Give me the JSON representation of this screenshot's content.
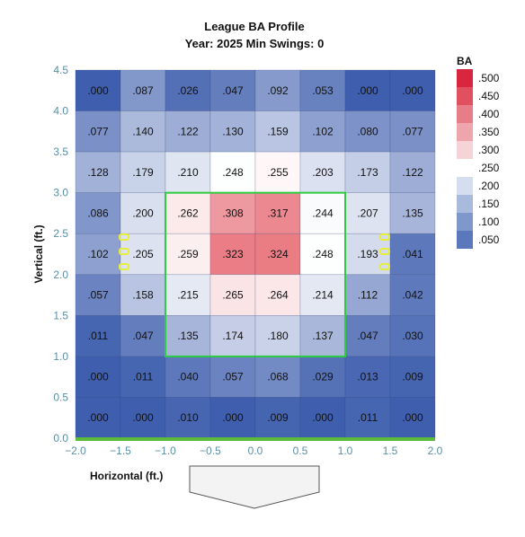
{
  "chart_data": {
    "type": "heatmap",
    "title": "League BA Profile",
    "subtitle": "Year: 2025 Min Swings: 0",
    "xlabel": "Horizontal (ft.)",
    "ylabel": "Vertical (ft.)",
    "xlim": [
      -2.0,
      2.0
    ],
    "ylim": [
      0.0,
      4.5
    ],
    "x_ticks": [
      "−2.0",
      "−1.5",
      "−1.0",
      "−0.5",
      "0.0",
      "0.5",
      "1.0",
      "1.5",
      "2.0"
    ],
    "y_ticks": [
      "0.0",
      "0.5",
      "1.0",
      "1.5",
      "2.0",
      "2.5",
      "3.0",
      "3.5",
      "4.0",
      "4.5"
    ],
    "x_edges": [
      -2.0,
      -1.5,
      -1.0,
      -0.5,
      0.0,
      0.5,
      1.0,
      1.5,
      2.0
    ],
    "y_edges": [
      4.5,
      4.0,
      3.5,
      3.0,
      2.5,
      2.0,
      1.5,
      1.0,
      0.5,
      0.0
    ],
    "values": [
      [
        ".000",
        ".087",
        ".026",
        ".047",
        ".092",
        ".053",
        ".000",
        ".000"
      ],
      [
        ".077",
        ".140",
        ".122",
        ".130",
        ".159",
        ".102",
        ".080",
        ".077"
      ],
      [
        ".128",
        ".179",
        ".210",
        ".248",
        ".255",
        ".203",
        ".173",
        ".122"
      ],
      [
        ".086",
        ".200",
        ".262",
        ".308",
        ".317",
        ".244",
        ".207",
        ".135"
      ],
      [
        ".102",
        ".205",
        ".259",
        ".323",
        ".324",
        ".248",
        ".193",
        ".041"
      ],
      [
        ".057",
        ".158",
        ".215",
        ".265",
        ".264",
        ".214",
        ".112",
        ".042"
      ],
      [
        ".011",
        ".047",
        ".135",
        ".174",
        ".180",
        ".137",
        ".047",
        ".030"
      ],
      [
        ".000",
        ".011",
        ".040",
        ".057",
        ".068",
        ".029",
        ".013",
        ".009"
      ],
      [
        ".000",
        ".000",
        ".010",
        ".000",
        ".009",
        ".000",
        ".011",
        ".000"
      ]
    ],
    "strike_zone": {
      "x": [
        -1.0,
        1.0
      ],
      "y": [
        1.0,
        3.0
      ]
    },
    "legend": {
      "title": "BA",
      "placement": "right",
      "labels": [
        ".500",
        ".450",
        ".400",
        ".350",
        ".300",
        ".250",
        ".200",
        ".150",
        ".100",
        ".050"
      ],
      "colors": [
        "#d7263d",
        "#e0505f",
        "#e77d87",
        "#eea6ac",
        "#f6d3d6",
        "#ffffff",
        "#d4deee",
        "#a9bbdc",
        "#7f98cb",
        "#5a78bb"
      ]
    },
    "colors": {
      "high": "#e8717a",
      "mid": "#ffffff",
      "low": "#3f5fae",
      "strike_zone": "#2ecc40",
      "ground": "#5dbb3a",
      "grid": "#2b3f73"
    }
  }
}
